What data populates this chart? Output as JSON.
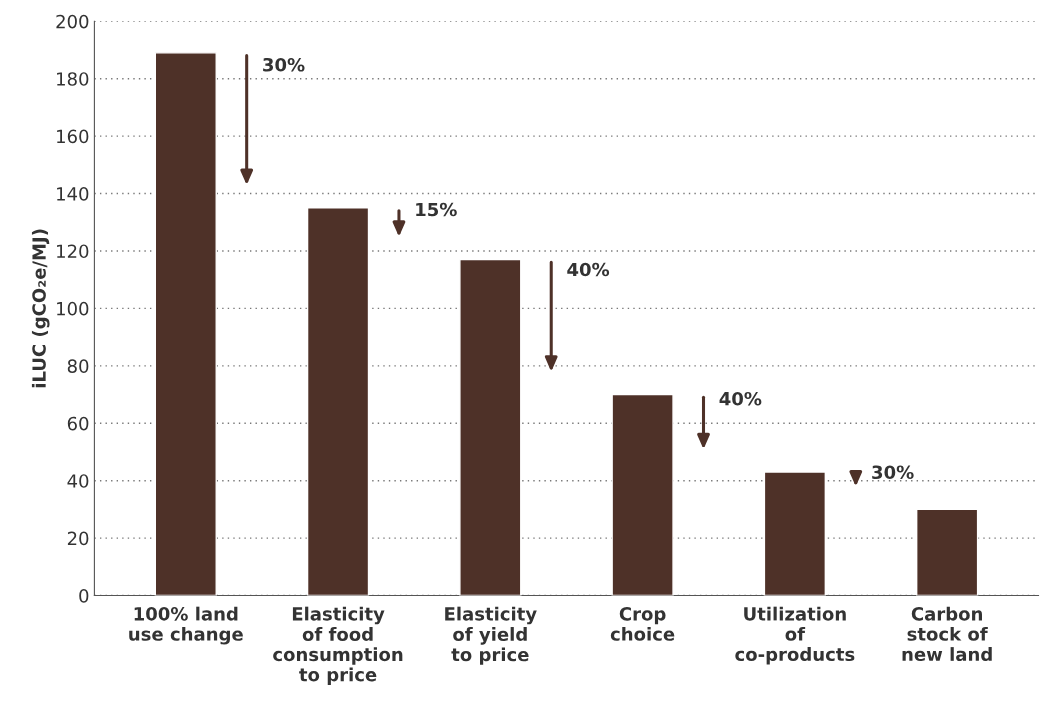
{
  "chart_data": {
    "type": "bar",
    "ylabel": "iLUC (gCO₂e/MJ)",
    "categories": [
      "100% land\nuse change",
      "Elasticity\nof food\nconsumption\nto price",
      "Elasticity\nof yield\nto price",
      "Crop\nchoice",
      "Utilization\nof\nco-products",
      "Carbon\nstock of\nnew land"
    ],
    "values": [
      189,
      135,
      117,
      70,
      43,
      30
    ],
    "color": "#4e3128",
    "ylim": [
      0,
      200
    ],
    "yticks": [
      0,
      20,
      40,
      60,
      80,
      100,
      120,
      140,
      160,
      180,
      200
    ],
    "grid": "y",
    "annotations": [
      "30%",
      "15%",
      "40%",
      "40%",
      "30%"
    ]
  }
}
